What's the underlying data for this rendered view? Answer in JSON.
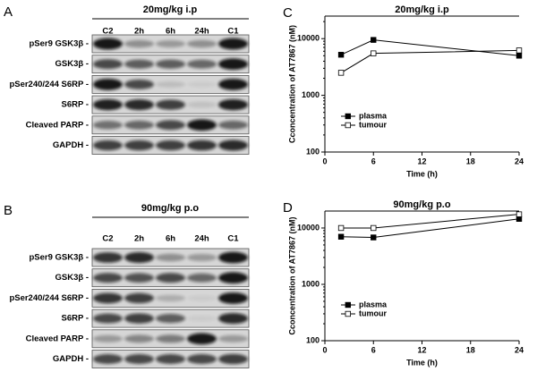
{
  "blots": [
    {
      "label": "A",
      "title": "20mg/kg i.p",
      "lanes": [
        "C2",
        "2h",
        "6h",
        "24h",
        "C1"
      ],
      "rows": [
        "pSer9 GSK3β -",
        "GSK3β -",
        "pSer240/244 S6RP -",
        "S6RP -",
        "Cleaved PARP -",
        "GAPDH -"
      ]
    },
    {
      "label": "B",
      "title": "90mg/kg p.o",
      "lanes": [
        "C2",
        "2h",
        "6h",
        "24h",
        "C1"
      ],
      "rows": [
        "pSer9 GSK3β -",
        "GSK3β -",
        "pSer240/244 S6RP -",
        "S6RP -",
        "Cleaved PARP -",
        "GAPDH -"
      ]
    }
  ],
  "chart_data": [
    {
      "type": "line",
      "label": "C",
      "title": "20mg/kg i.p",
      "x_label": "Time (h)",
      "y_label": "Cconcentration of AT7867 (nM)",
      "x": [
        2,
        6,
        24
      ],
      "xlim": [
        0,
        24
      ],
      "xticks": [
        0,
        6,
        12,
        18,
        24
      ],
      "ylim": [
        100,
        25000
      ],
      "yticks": [
        100,
        1000,
        10000
      ],
      "log_y": true,
      "legend": "lower-left",
      "series": [
        {
          "name": "plasma",
          "color": "#000000",
          "marker_fill": "#000000",
          "values": [
            5200,
            9500,
            5000
          ]
        },
        {
          "name": "tumour",
          "color": "#000000",
          "marker_fill": "#ffffff",
          "values": [
            2500,
            5500,
            6200
          ]
        }
      ]
    },
    {
      "type": "line",
      "label": "D",
      "title": "90mg/kg p.o",
      "x_label": "Time (h)",
      "y_label": "Cconcentration of AT7867 (nM)",
      "x": [
        2,
        6,
        24
      ],
      "xlim": [
        0,
        24
      ],
      "xticks": [
        0,
        6,
        12,
        18,
        24
      ],
      "ylim": [
        100,
        20000
      ],
      "yticks": [
        100,
        1000,
        10000
      ],
      "log_y": true,
      "legend": "lower-left",
      "series": [
        {
          "name": "plasma",
          "color": "#000000",
          "marker_fill": "#000000",
          "values": [
            7000,
            6800,
            14500
          ]
        },
        {
          "name": "tumour",
          "color": "#000000",
          "marker_fill": "#ffffff",
          "values": [
            10000,
            10000,
            17500
          ]
        }
      ]
    }
  ]
}
